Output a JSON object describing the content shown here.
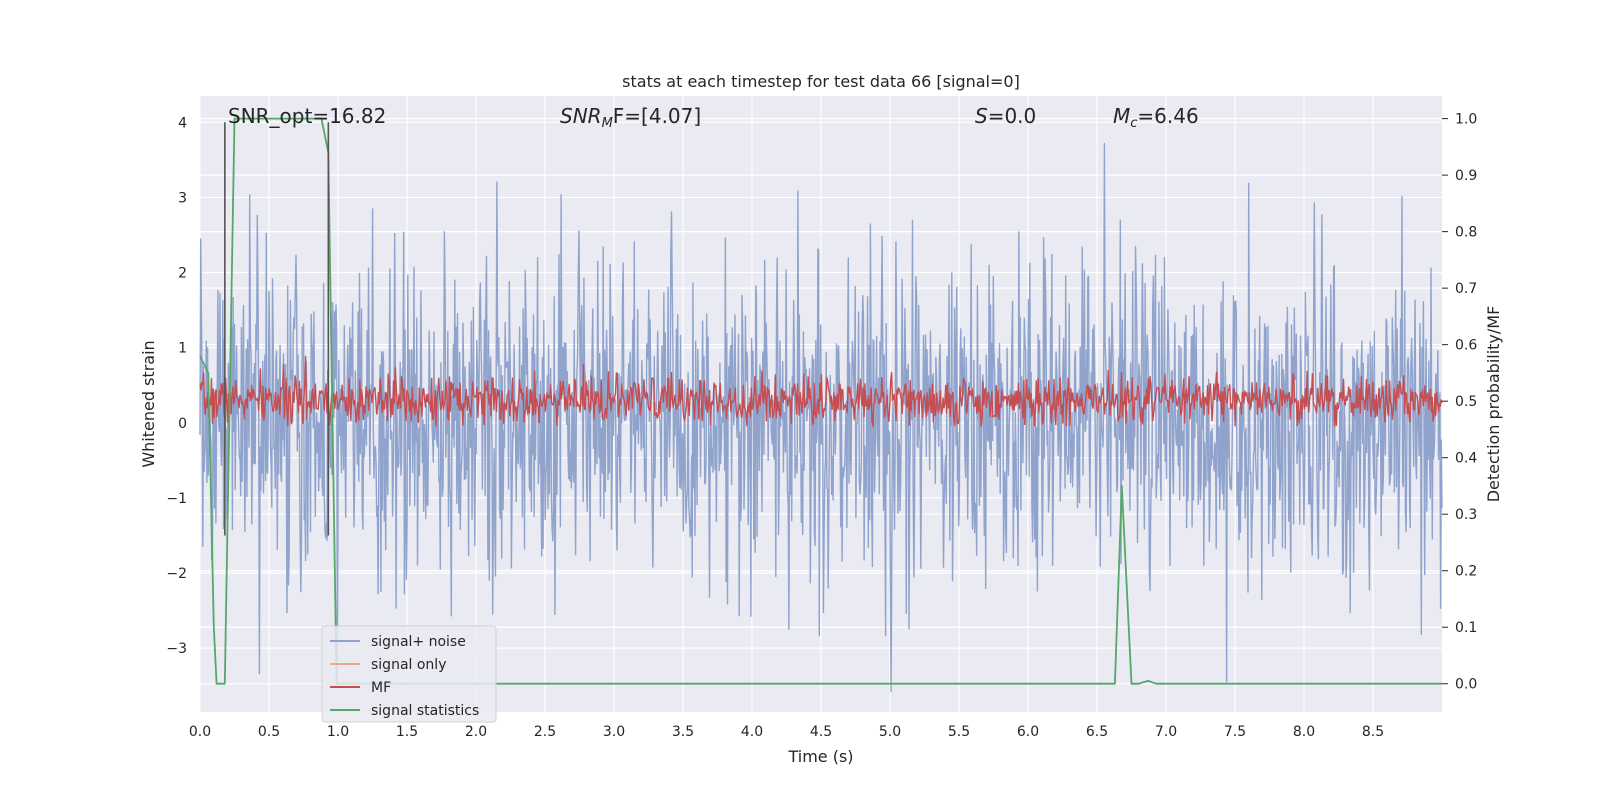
{
  "chart_data": {
    "type": "line",
    "title": "stats at each timestep for test data 66 [signal=0]",
    "xlabel": "Time (s)",
    "ylabel": "Whitened strain",
    "y2label": "Detection probability/MF",
    "xlim": [
      0.0,
      9.0
    ],
    "ylim": [
      -3.85,
      4.35
    ],
    "y2lim": [
      -0.05,
      1.04
    ],
    "xticks": [
      0.0,
      0.5,
      1.0,
      1.5,
      2.0,
      2.5,
      3.0,
      3.5,
      4.0,
      4.5,
      5.0,
      5.5,
      6.0,
      6.5,
      7.0,
      7.5,
      8.0,
      8.5
    ],
    "xtick_labels": [
      "0.0",
      "0.5",
      "1.0",
      "1.5",
      "2.0",
      "2.5",
      "3.0",
      "3.5",
      "4.0",
      "4.5",
      "5.0",
      "5.5",
      "6.0",
      "6.5",
      "7.0",
      "7.5",
      "8.0",
      "8.5"
    ],
    "yticks": [
      -3,
      -2,
      -1,
      0,
      1,
      2,
      3,
      4
    ],
    "ytick_labels": [
      "−3",
      "−2",
      "−1",
      "0",
      "1",
      "2",
      "3",
      "4"
    ],
    "y2ticks": [
      0.0,
      0.1,
      0.2,
      0.3,
      0.4,
      0.5,
      0.6,
      0.7,
      0.8,
      0.9,
      1.0
    ],
    "y2tick_labels": [
      "0.0",
      "0.1",
      "0.2",
      "0.3",
      "0.4",
      "0.5",
      "0.6",
      "0.7",
      "0.8",
      "0.9",
      "1.0"
    ],
    "annotations": {
      "snr_opt": "SNR_opt=16.82",
      "snr_mf_base": "SNR",
      "snr_mf_sub": "M",
      "snr_mf_rest": "F=[4.07]",
      "s_var": "S",
      "s_rest": "=0.0",
      "mc_base": "M",
      "mc_sub": "c",
      "mc_rest": "=6.46"
    },
    "vlines": [
      {
        "x": 0.18,
        "color": "#555555"
      },
      {
        "x": 0.93,
        "color": "#555555"
      }
    ],
    "legend": {
      "position": "lower-left",
      "entries": [
        {
          "label": "signal+ noise",
          "color": "#8fa3cc"
        },
        {
          "label": "signal only",
          "color": "#e9a88a"
        },
        {
          "label": "MF",
          "color": "#c44e52"
        },
        {
          "label": "signal statistics",
          "color": "#55a868"
        }
      ]
    },
    "series": [
      {
        "name": "signal+ noise",
        "axis": "left",
        "style": "noise",
        "color": "#8fa3cc",
        "center": 0.0,
        "spread": 1.7,
        "max_excursion": 3.9,
        "samples": 1800,
        "seed": 66
      },
      {
        "name": "MF",
        "axis": "left",
        "style": "noise",
        "color": "#c44e52",
        "center": 0.3,
        "spread": 0.25,
        "max_excursion": 0.95,
        "min_value": -0.05,
        "samples": 1400,
        "seed": 7
      },
      {
        "name": "signal statistics",
        "axis": "right",
        "style": "line",
        "color": "#55a868",
        "x": [
          0.0,
          0.06,
          0.1,
          0.12,
          0.18,
          0.25,
          0.3,
          0.5,
          0.7,
          0.88,
          0.93,
          0.99,
          1.05,
          3.0,
          5.0,
          6.5,
          6.63,
          6.68,
          6.75,
          6.8,
          6.87,
          6.93,
          7.5,
          8.5,
          9.0
        ],
        "values": [
          0.58,
          0.55,
          0.1,
          0.0,
          0.0,
          1.0,
          1.0,
          1.0,
          1.0,
          1.0,
          0.94,
          0.0,
          0.0,
          0.0,
          0.0,
          0.0,
          0.0,
          0.35,
          0.0,
          0.0,
          0.005,
          0.0,
          0.0,
          0.0,
          0.0
        ]
      }
    ],
    "colors": {
      "plot_bg": "#eaeaf2",
      "grid": "#ffffff",
      "text": "#262626",
      "legend_bg": "#eaeaf2",
      "legend_border": "#cccccc"
    }
  }
}
